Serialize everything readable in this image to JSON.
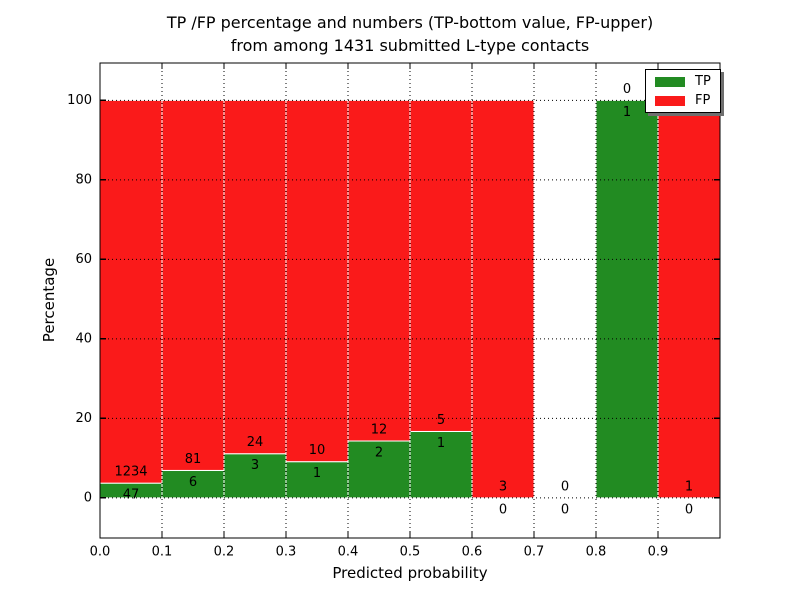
{
  "chart_data": {
    "type": "bar",
    "stacked": true,
    "title_lines": [
      "TP /FP percentage and numbers (TP-bottom value, FP-upper)",
      "from among 1431 submitted L-type contacts"
    ],
    "title": "TP /FP percentage and numbers (TP-bottom value, FP-upper) from among 1431 submitted L-type contacts",
    "xlabel": "Predicted probability",
    "ylabel": "Percentage",
    "total_submitted_contacts": 1431,
    "bin_width": 0.1,
    "x_bins": [
      0.0,
      0.1,
      0.2,
      0.3,
      0.4,
      0.5,
      0.6,
      0.7,
      0.8,
      0.9
    ],
    "x_tick_labels": [
      "0.0",
      "0.1",
      "0.2",
      "0.3",
      "0.4",
      "0.5",
      "0.6",
      "0.7",
      "0.8",
      "0.9"
    ],
    "y_ticks": [
      0,
      20,
      40,
      60,
      80,
      100
    ],
    "xlim": [
      0.0,
      1.0
    ],
    "ylim": [
      -10.1,
      109.4
    ],
    "grid_style": "dotted",
    "bar_edge_color": "#ffffff",
    "series": [
      {
        "name": "TP",
        "color": "#228b22",
        "counts": [
          47,
          6,
          3,
          1,
          2,
          1,
          0,
          0,
          1,
          0
        ],
        "percentages": [
          3.7,
          6.9,
          11.1,
          9.1,
          14.3,
          16.7,
          0,
          0,
          100,
          0
        ]
      },
      {
        "name": "FP",
        "color": "#fa1a1a",
        "counts": [
          1234,
          81,
          24,
          10,
          12,
          5,
          3,
          0,
          0,
          1
        ],
        "percentages": [
          96.3,
          93.1,
          88.9,
          90.9,
          85.7,
          83.3,
          100,
          0,
          0,
          100
        ]
      }
    ],
    "legend": {
      "position": "upper right",
      "entries": [
        "TP",
        "FP"
      ]
    }
  }
}
